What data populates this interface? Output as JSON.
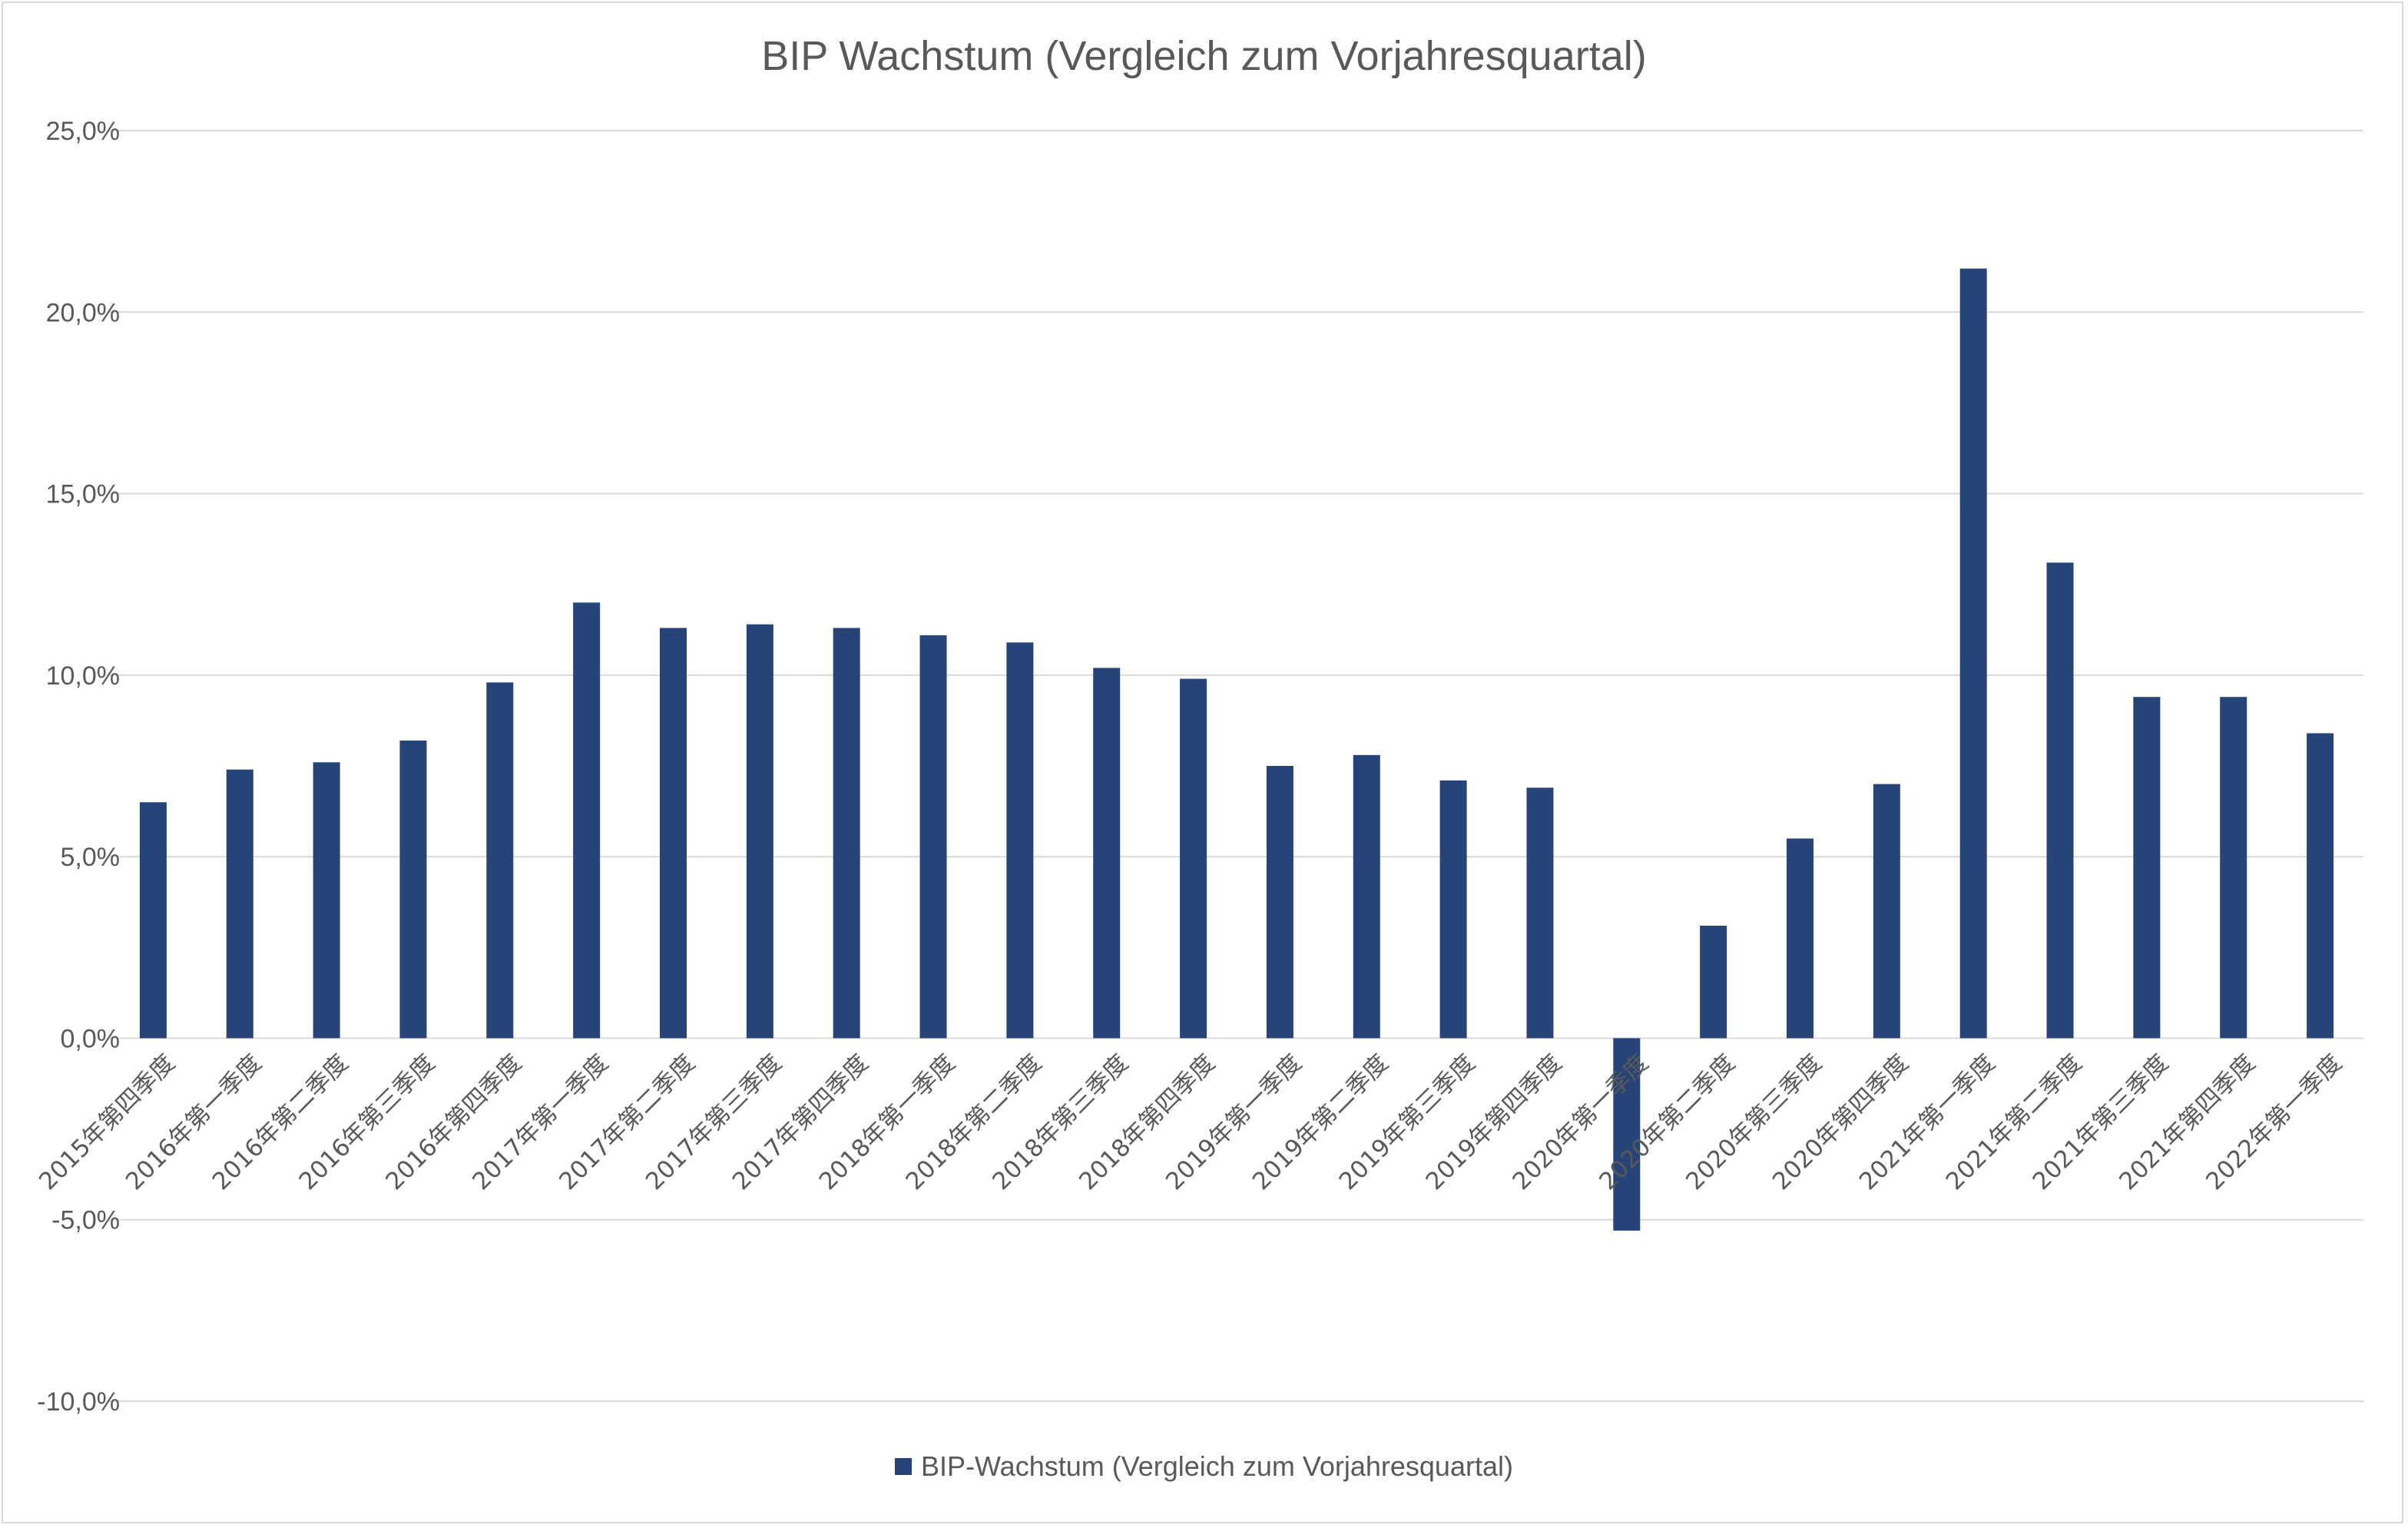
{
  "chart_data": {
    "type": "bar",
    "title": "BIP Wachstum (Vergleich zum Vorjahresquartal)",
    "xlabel": "",
    "ylabel": "",
    "ylim": [
      -10,
      25
    ],
    "y_ticks": [
      25,
      20,
      15,
      10,
      5,
      0,
      -5,
      -10
    ],
    "y_tick_labels": [
      "25,0%",
      "20,0%",
      "15,0%",
      "10,0%",
      "5,0%",
      "0,0%",
      "-5,0%",
      "-10,0%"
    ],
    "grid": true,
    "legend_position": "bottom",
    "bar_color": "#264478",
    "categories": [
      "2015年第四季度",
      "2016年第一季度",
      "2016年第二季度",
      "2016年第三季度",
      "2016年第四季度",
      "2017年第一季度",
      "2017年第二季度",
      "2017年第三季度",
      "2017年第四季度",
      "2018年第一季度",
      "2018年第二季度",
      "2018年第三季度",
      "2018年第四季度",
      "2019年第一季度",
      "2019年第二季度",
      "2019年第三季度",
      "2019年第四季度",
      "2020年第一季度",
      "2020年第二季度",
      "2020年第三季度",
      "2020年第四季度",
      "2021年第一季度",
      "2021年第二季度",
      "2021年第三季度",
      "2021年第四季度",
      "2022年第一季度"
    ],
    "series": [
      {
        "name": "BIP-Wachstum (Vergleich zum Vorjahresquartal)",
        "values": [
          6.5,
          7.4,
          7.6,
          8.2,
          9.8,
          12.0,
          11.3,
          11.4,
          11.3,
          11.1,
          10.9,
          10.2,
          9.9,
          7.5,
          7.8,
          7.1,
          6.9,
          -5.3,
          3.1,
          5.5,
          7.0,
          21.2,
          13.1,
          9.4,
          9.4,
          8.4
        ]
      }
    ]
  }
}
